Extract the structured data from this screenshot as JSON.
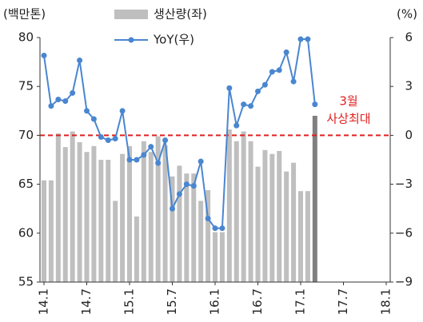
{
  "chart_data": {
    "type": "bar_line",
    "y_label": "(백만톤)",
    "y2_label": "(%)",
    "categories": [
      "14.1",
      null,
      null,
      null,
      null,
      null,
      "14.7",
      null,
      null,
      null,
      null,
      null,
      "15.1",
      null,
      null,
      null,
      null,
      null,
      "15.7",
      null,
      null,
      null,
      null,
      null,
      "16.1",
      null,
      null,
      null,
      null,
      null,
      "16.7",
      null,
      null,
      null,
      null,
      null,
      "17.1",
      null,
      null,
      null,
      null,
      null,
      "17.7",
      null,
      null,
      null,
      null,
      null,
      "18.1"
    ],
    "series": [
      {
        "name": "생산량(좌)",
        "type": "bar",
        "axis": "y",
        "color": "#bfbfbf",
        "last_color": "#7f7f7f",
        "values": [
          65.4,
          65.4,
          70.2,
          68.8,
          70.4,
          69.3,
          68.3,
          68.9,
          67.5,
          67.5,
          63.3,
          68.1,
          68.9,
          61.7,
          69.4,
          68.3,
          69.9,
          69.0,
          65.8,
          66.9,
          66.1,
          66.1,
          63.3,
          64.4,
          60.1,
          60.1,
          70.6,
          69.4,
          70.4,
          69.4,
          66.8,
          68.5,
          68.1,
          68.4,
          66.3,
          67.2,
          64.3,
          64.3,
          72.0,
          null,
          null,
          null,
          null,
          null,
          null,
          null,
          null,
          null,
          null
        ]
      },
      {
        "name": "YoY(우)",
        "type": "line",
        "axis": "y2",
        "color": "#4a86d0",
        "values": [
          4.9,
          1.8,
          2.2,
          2.1,
          2.6,
          4.6,
          1.5,
          1.0,
          -0.1,
          -0.3,
          -0.2,
          1.5,
          -1.5,
          -1.5,
          -1.2,
          -0.7,
          -1.7,
          -0.3,
          -4.5,
          -3.6,
          -3.0,
          -3.1,
          -1.6,
          -5.1,
          -5.7,
          -5.7,
          2.9,
          0.6,
          1.9,
          1.8,
          2.7,
          3.1,
          3.9,
          4.0,
          5.1,
          3.3,
          5.9,
          5.9,
          1.9,
          null,
          null,
          null,
          null,
          null,
          null,
          null,
          null,
          null,
          null
        ]
      }
    ],
    "ylim": [
      55,
      80
    ],
    "yticks": [
      55,
      60,
      65,
      70,
      75,
      80
    ],
    "y2lim": [
      -9,
      6
    ],
    "y2ticks": [
      {
        "value": -9,
        "label": "−9"
      },
      {
        "value": -6,
        "label": "−6"
      },
      {
        "value": -3,
        "label": "−3"
      },
      0,
      3,
      6
    ],
    "reference_line": {
      "value": 0,
      "axis": "y2",
      "color": "#e02020"
    },
    "annotation": {
      "lines": [
        "3월",
        "사상최대"
      ],
      "color": "#e02020"
    }
  }
}
